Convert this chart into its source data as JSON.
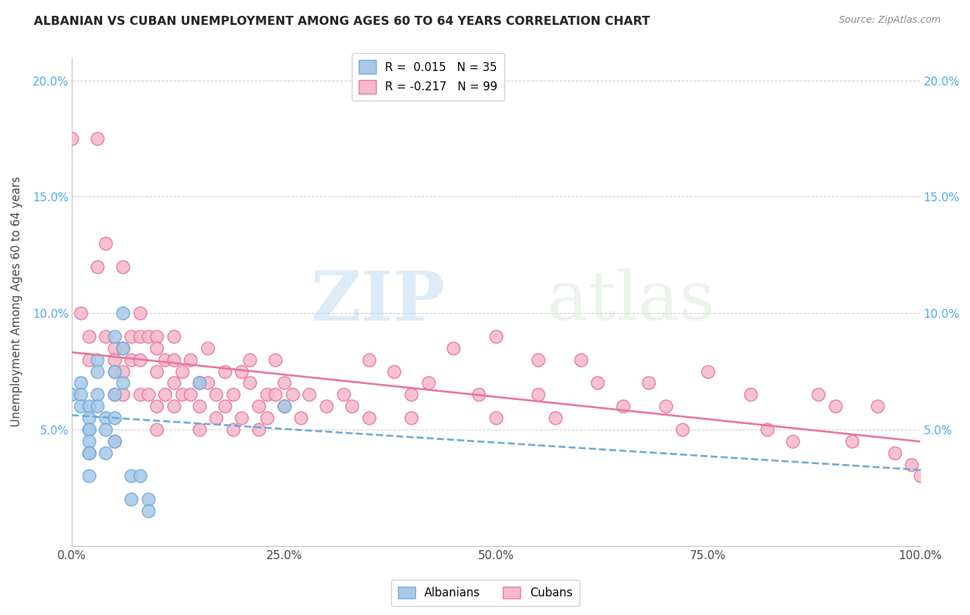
{
  "title": "ALBANIAN VS CUBAN UNEMPLOYMENT AMONG AGES 60 TO 64 YEARS CORRELATION CHART",
  "source": "Source: ZipAtlas.com",
  "ylabel": "Unemployment Among Ages 60 to 64 years",
  "xlim": [
    0,
    1.0
  ],
  "ylim": [
    0,
    0.21
  ],
  "xticks": [
    0.0,
    0.25,
    0.5,
    0.75,
    1.0
  ],
  "xticklabels": [
    "0.0%",
    "25.0%",
    "50.0%",
    "75.0%",
    "100.0%"
  ],
  "yticks": [
    0.0,
    0.05,
    0.1,
    0.15,
    0.2
  ],
  "yticklabels": [
    "",
    "5.0%",
    "10.0%",
    "15.0%",
    "20.0%"
  ],
  "albanian_R": 0.015,
  "albanian_N": 35,
  "cuban_R": -0.217,
  "cuban_N": 99,
  "albanian_color": "#a8c8e8",
  "albanian_edge": "#6aaad4",
  "cuban_color": "#f5b8cc",
  "cuban_edge": "#e8729a",
  "albanian_trend_color": "#6aaad4",
  "cuban_trend_color": "#e8729a",
  "watermark_zip": "ZIP",
  "watermark_atlas": "atlas",
  "albanian_x": [
    0.0,
    0.01,
    0.01,
    0.01,
    0.02,
    0.02,
    0.02,
    0.02,
    0.02,
    0.02,
    0.02,
    0.02,
    0.02,
    0.03,
    0.03,
    0.03,
    0.03,
    0.04,
    0.04,
    0.04,
    0.05,
    0.05,
    0.05,
    0.05,
    0.05,
    0.06,
    0.06,
    0.06,
    0.07,
    0.07,
    0.08,
    0.09,
    0.09,
    0.15,
    0.25
  ],
  "albanian_y": [
    0.065,
    0.07,
    0.065,
    0.06,
    0.06,
    0.055,
    0.05,
    0.05,
    0.045,
    0.04,
    0.04,
    0.04,
    0.03,
    0.08,
    0.075,
    0.065,
    0.06,
    0.055,
    0.05,
    0.04,
    0.09,
    0.075,
    0.065,
    0.055,
    0.045,
    0.1,
    0.085,
    0.07,
    0.03,
    0.02,
    0.03,
    0.02,
    0.015,
    0.07,
    0.06
  ],
  "cuban_x": [
    0.0,
    0.01,
    0.02,
    0.02,
    0.03,
    0.03,
    0.04,
    0.04,
    0.05,
    0.05,
    0.05,
    0.05,
    0.05,
    0.06,
    0.06,
    0.06,
    0.06,
    0.07,
    0.07,
    0.08,
    0.08,
    0.08,
    0.08,
    0.09,
    0.09,
    0.1,
    0.1,
    0.1,
    0.1,
    0.1,
    0.11,
    0.11,
    0.12,
    0.12,
    0.12,
    0.12,
    0.13,
    0.13,
    0.14,
    0.14,
    0.15,
    0.15,
    0.15,
    0.16,
    0.16,
    0.17,
    0.17,
    0.18,
    0.18,
    0.19,
    0.19,
    0.2,
    0.2,
    0.21,
    0.21,
    0.22,
    0.22,
    0.23,
    0.23,
    0.24,
    0.24,
    0.25,
    0.25,
    0.26,
    0.27,
    0.28,
    0.3,
    0.32,
    0.33,
    0.35,
    0.35,
    0.38,
    0.4,
    0.4,
    0.42,
    0.45,
    0.48,
    0.5,
    0.5,
    0.55,
    0.55,
    0.57,
    0.6,
    0.62,
    0.65,
    0.68,
    0.7,
    0.72,
    0.75,
    0.8,
    0.82,
    0.85,
    0.88,
    0.9,
    0.95,
    0.97,
    0.99,
    1.0,
    0.92
  ],
  "cuban_y": [
    0.175,
    0.1,
    0.09,
    0.08,
    0.175,
    0.12,
    0.13,
    0.09,
    0.085,
    0.08,
    0.075,
    0.065,
    0.045,
    0.12,
    0.085,
    0.075,
    0.065,
    0.09,
    0.08,
    0.1,
    0.09,
    0.08,
    0.065,
    0.09,
    0.065,
    0.09,
    0.085,
    0.075,
    0.06,
    0.05,
    0.08,
    0.065,
    0.09,
    0.08,
    0.07,
    0.06,
    0.075,
    0.065,
    0.08,
    0.065,
    0.07,
    0.06,
    0.05,
    0.085,
    0.07,
    0.065,
    0.055,
    0.075,
    0.06,
    0.065,
    0.05,
    0.075,
    0.055,
    0.08,
    0.07,
    0.06,
    0.05,
    0.065,
    0.055,
    0.08,
    0.065,
    0.07,
    0.06,
    0.065,
    0.055,
    0.065,
    0.06,
    0.065,
    0.06,
    0.08,
    0.055,
    0.075,
    0.065,
    0.055,
    0.07,
    0.085,
    0.065,
    0.09,
    0.055,
    0.08,
    0.065,
    0.055,
    0.08,
    0.07,
    0.06,
    0.07,
    0.06,
    0.05,
    0.075,
    0.065,
    0.05,
    0.045,
    0.065,
    0.06,
    0.06,
    0.04,
    0.035,
    0.03,
    0.045
  ]
}
